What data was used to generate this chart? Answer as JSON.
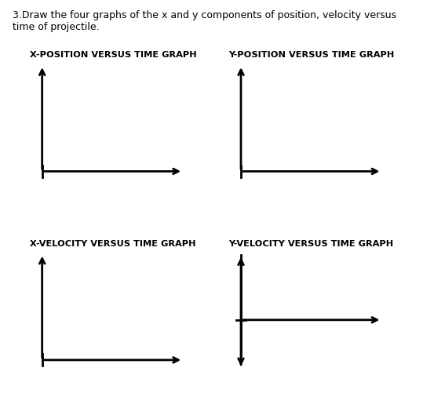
{
  "title_text": "3.Draw the four graphs of the x and y components of position, velocity versus\ntime of projectile.",
  "graphs": [
    {
      "title": "X-POSITION VERSUS TIME GRAPH",
      "type": "standard"
    },
    {
      "title": "Y-POSITION VERSUS TIME GRAPH",
      "type": "standard"
    },
    {
      "title": "X-VELOCITY VERSUS TIME GRAPH",
      "type": "standard"
    },
    {
      "title": "Y-VELOCITY VERSUS TIME GRAPH",
      "type": "centered_y"
    }
  ],
  "bg_color": "#ffffff",
  "line_color": "#000000",
  "title_fontsize": 9.0,
  "graph_title_fontsize": 8.2,
  "lw": 2.0
}
